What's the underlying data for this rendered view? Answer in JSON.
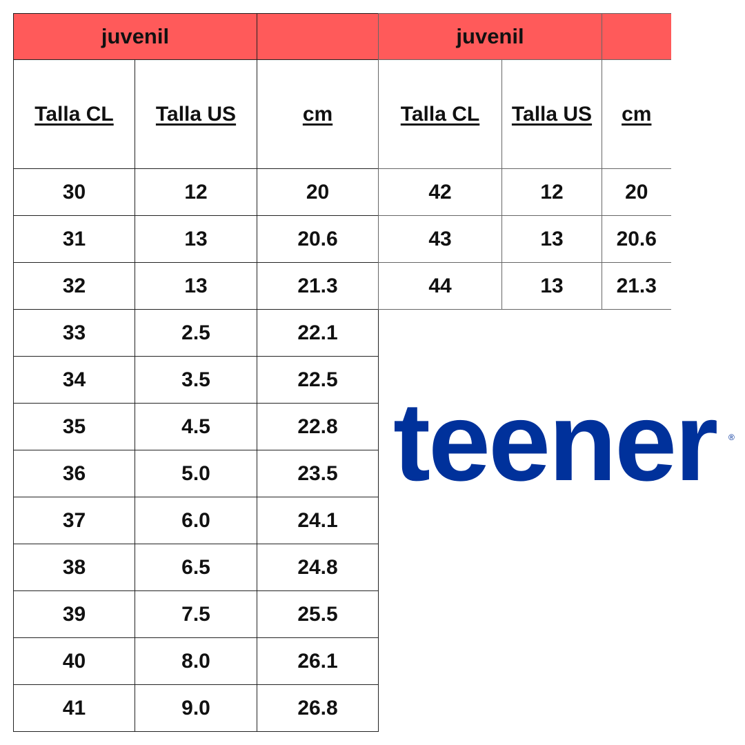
{
  "tables": [
    {
      "title": "juvenil",
      "headers": [
        "Talla CL",
        "Talla US",
        "cm"
      ],
      "rows": [
        [
          "30",
          "12",
          "20"
        ],
        [
          "31",
          "13",
          "20.6"
        ],
        [
          "32",
          "13",
          "21.3"
        ],
        [
          "33",
          "2.5",
          "22.1"
        ],
        [
          "34",
          "3.5",
          "22.5"
        ],
        [
          "35",
          "4.5",
          "22.8"
        ],
        [
          "36",
          "5.0",
          "23.5"
        ],
        [
          "37",
          "6.0",
          "24.1"
        ],
        [
          "38",
          "6.5",
          "24.8"
        ],
        [
          "39",
          "7.5",
          "25.5"
        ],
        [
          "40",
          "8.0",
          "26.1"
        ],
        [
          "41",
          "9.0",
          "26.8"
        ]
      ]
    },
    {
      "title": "juvenil",
      "headers": [
        "Talla CL",
        "Talla US",
        "cm"
      ],
      "rows": [
        [
          "42",
          "12",
          "20"
        ],
        [
          "43",
          "13",
          "20.6"
        ],
        [
          "44",
          "13",
          "21.3"
        ]
      ]
    }
  ],
  "logo": {
    "text": "teener",
    "mark": "®",
    "color": "#00319b"
  },
  "colors": {
    "header": "#ff5a5a"
  }
}
